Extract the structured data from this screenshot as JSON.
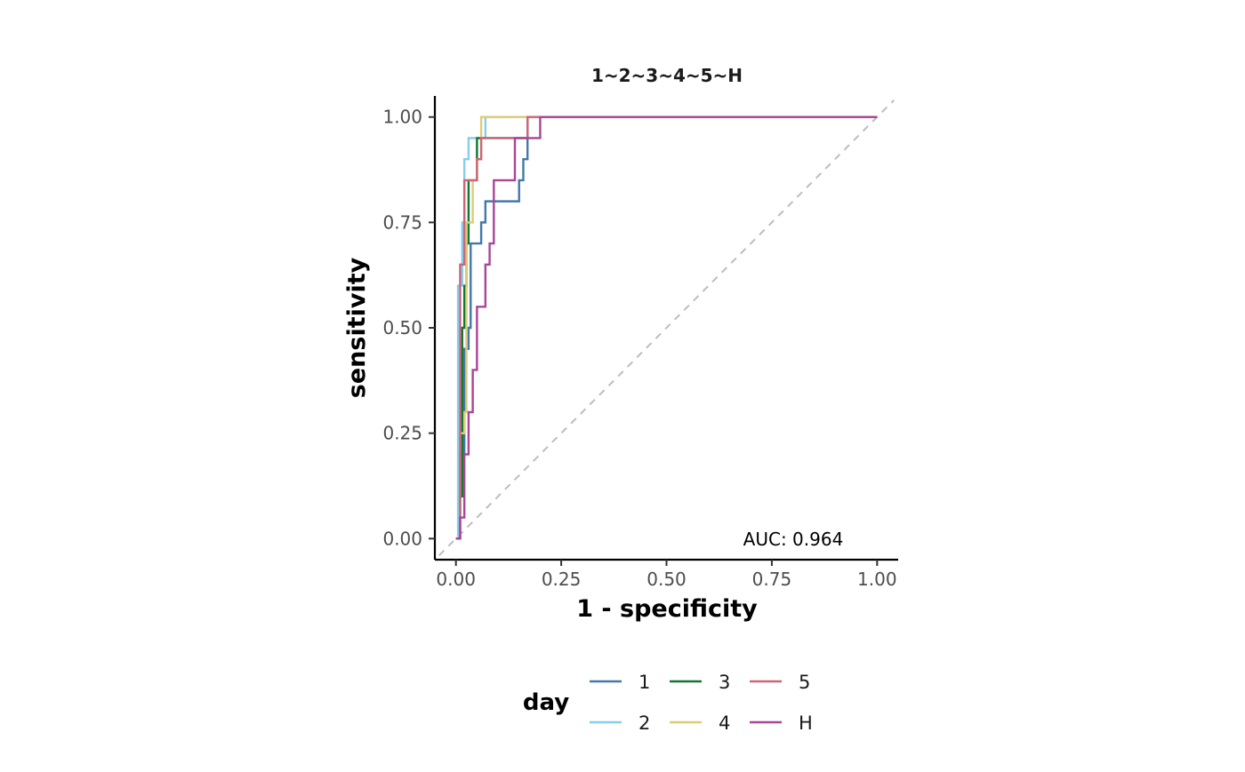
{
  "chart_data": {
    "type": "line",
    "title": "1~2~3~4~5~H",
    "xlabel": "1 - specificity",
    "ylabel": "sensitivity",
    "xlim": [
      -0.05,
      1.05
    ],
    "ylim": [
      -0.05,
      1.05
    ],
    "x_ticks": [
      "0.00",
      "0.25",
      "0.50",
      "0.75",
      "1.00"
    ],
    "y_ticks": [
      "0.00",
      "0.25",
      "0.50",
      "0.75",
      "1.00"
    ],
    "annotation": "AUC: 0.964",
    "reference_line": {
      "from": [
        0,
        0
      ],
      "to": [
        1,
        1
      ],
      "style": "dashed",
      "color": "#bdbdbd"
    },
    "grid": false,
    "legend": {
      "title": "day",
      "placement": "bottom",
      "entries": [
        "1",
        "2",
        "3",
        "4",
        "5",
        "H"
      ]
    },
    "series": [
      {
        "name": "1",
        "color": "#4477AA",
        "x": [
          0,
          0.006,
          0.01,
          0.02,
          0.02,
          0.03,
          0.035,
          0.04,
          0.05,
          0.06,
          0.07,
          0.09,
          0.11,
          0.13,
          0.15,
          0.16,
          0.17,
          0.18,
          1.0
        ],
        "y": [
          0,
          0.05,
          0.2,
          0.35,
          0.45,
          0.5,
          0.7,
          0.7,
          0.7,
          0.75,
          0.8,
          0.8,
          0.8,
          0.8,
          0.85,
          0.9,
          1.0,
          1.0,
          1.0
        ]
      },
      {
        "name": "2",
        "color": "#88CCEE",
        "x": [
          0,
          0.005,
          0.015,
          0.02,
          0.025,
          0.03,
          0.04,
          0.05,
          0.07,
          1.0
        ],
        "y": [
          0,
          0.6,
          0.75,
          0.9,
          0.9,
          0.95,
          0.95,
          0.95,
          1.0,
          1.0
        ]
      },
      {
        "name": "3",
        "color": "#117733",
        "x": [
          0,
          0.01,
          0.015,
          0.02,
          0.025,
          0.03,
          0.04,
          0.05,
          0.06,
          0.07,
          0.17,
          1.0
        ],
        "y": [
          0,
          0.1,
          0.5,
          0.6,
          0.7,
          0.85,
          0.85,
          0.95,
          0.95,
          0.95,
          1.0,
          1.0
        ]
      },
      {
        "name": "4",
        "color": "#DDCC77",
        "x": [
          0,
          0.01,
          0.02,
          0.025,
          0.03,
          0.04,
          0.05,
          0.06,
          0.07,
          1.0
        ],
        "y": [
          0,
          0.25,
          0.3,
          0.75,
          0.75,
          0.85,
          0.9,
          1.0,
          1.0,
          1.0
        ]
      },
      {
        "name": "5",
        "color": "#CC6677",
        "x": [
          0,
          0.01,
          0.02,
          0.03,
          0.04,
          0.05,
          0.06,
          0.16,
          0.17,
          1.0
        ],
        "y": [
          0,
          0.65,
          0.85,
          0.85,
          0.85,
          0.9,
          0.95,
          0.95,
          1.0,
          1.0
        ]
      },
      {
        "name": "H",
        "color": "#AA4499",
        "x": [
          0,
          0.01,
          0.02,
          0.03,
          0.04,
          0.05,
          0.06,
          0.07,
          0.08,
          0.09,
          0.1,
          0.14,
          0.2,
          1.0
        ],
        "y": [
          0,
          0.05,
          0.2,
          0.3,
          0.4,
          0.55,
          0.55,
          0.65,
          0.7,
          0.85,
          0.85,
          0.95,
          1.0,
          1.0
        ]
      }
    ]
  }
}
